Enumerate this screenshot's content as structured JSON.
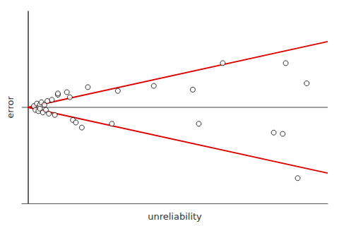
{
  "chart_data": {
    "type": "scatter",
    "xlabel": "unreliability",
    "ylabel": "error",
    "xlim": [
      -0.02,
      1.0
    ],
    "ylim": [
      -0.38,
      0.38
    ],
    "xticks": [],
    "yticks": [],
    "tick_labels": false,
    "grid": false,
    "series": [
      {
        "type": "scatter",
        "marker": "hollow_circle",
        "color": "#000000",
        "x": [
          0.02,
          0.025,
          0.03,
          0.035,
          0.04,
          0.04,
          0.045,
          0.05,
          0.055,
          0.06,
          0.065,
          0.07,
          0.08,
          0.09,
          0.1,
          0.1,
          0.13,
          0.14,
          0.15,
          0.16,
          0.18,
          0.2,
          0.28,
          0.3,
          0.42,
          0.55,
          0.57,
          0.65,
          0.82,
          0.85,
          0.86,
          0.9,
          0.93
        ],
        "values": [
          0.005,
          -0.01,
          0.015,
          -0.015,
          0.01,
          -0.005,
          0.02,
          -0.02,
          0.01,
          -0.01,
          0.025,
          -0.025,
          0.03,
          -0.03,
          0.05,
          0.055,
          0.06,
          0.04,
          -0.05,
          -0.06,
          -0.08,
          0.08,
          -0.065,
          0.065,
          0.085,
          0.07,
          -0.065,
          0.175,
          -0.1,
          -0.105,
          0.175,
          -0.28,
          0.095
        ]
      },
      {
        "type": "hline",
        "y": 0.0,
        "color": "#444444"
      },
      {
        "type": "line",
        "color": "#dd0000",
        "x": [
          0.0,
          1.0
        ],
        "values": [
          0.0,
          0.26
        ]
      },
      {
        "type": "line",
        "color": "#dd0000",
        "x": [
          0.0,
          1.0
        ],
        "values": [
          0.0,
          -0.26
        ]
      }
    ]
  }
}
